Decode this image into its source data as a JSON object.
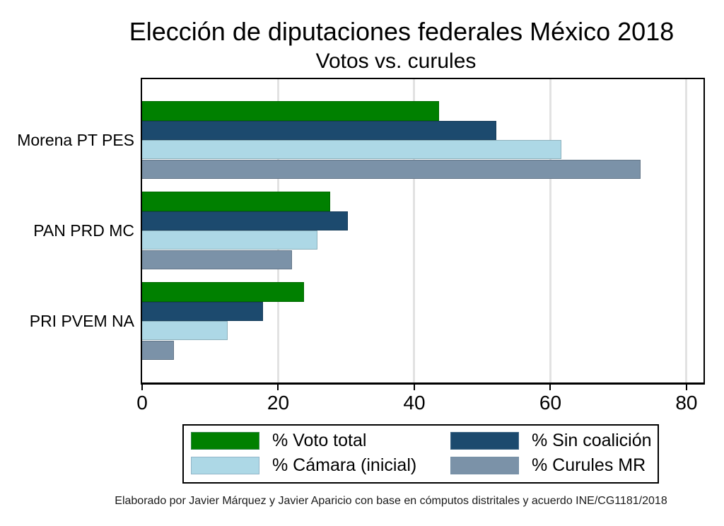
{
  "header": {
    "title": "Elección de diputaciones federales México 2018",
    "subtitle": "Votos vs. curules"
  },
  "chart_data": {
    "type": "bar",
    "orientation": "horizontal",
    "title": "Elección de diputaciones federales México 2018",
    "subtitle": "Votos vs. curules",
    "categories": [
      "Morena PT PES",
      "PAN PRD MC",
      "PRI PVEM NA"
    ],
    "series": [
      {
        "name": "% Voto total",
        "color": "#008000",
        "values": [
          43.6,
          27.6,
          23.8
        ]
      },
      {
        "name": "% Sin coalición",
        "color": "#1c4a6e",
        "values": [
          52.1,
          30.2,
          17.8
        ]
      },
      {
        "name": "% Cámara (inicial)",
        "color": "#add8e6",
        "values": [
          61.6,
          25.8,
          12.6
        ]
      },
      {
        "name": "% Curules MR",
        "color": "#7b92a8",
        "values": [
          73.3,
          22.0,
          4.7
        ]
      }
    ],
    "xlim": [
      0,
      82.5
    ],
    "xticks": [
      0,
      20,
      40,
      60,
      80
    ],
    "grid": true,
    "gridline_color": "#e2e2e2",
    "legend_position": "bottom"
  },
  "footnote": "Elaborado por Javier Márquez y Javier Aparicio con base en cómputos distritales y acuerdo INE/CG1181/2018"
}
